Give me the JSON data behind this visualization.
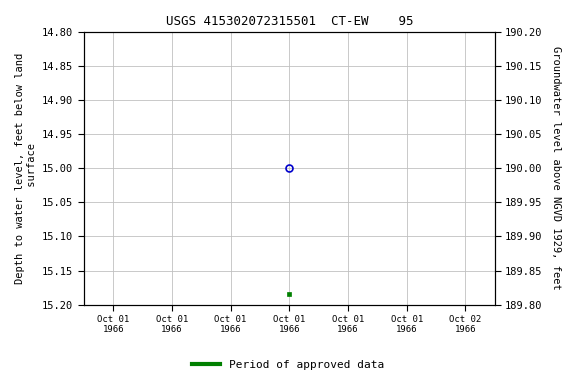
{
  "title": "USGS 415302072315501  CT-EW    95",
  "ylabel_left": "Depth to water level, feet below land\n surface",
  "ylabel_right": "Groundwater level above NGVD 1929, feet",
  "ylim_left": [
    15.2,
    14.8
  ],
  "ylim_right": [
    189.8,
    190.2
  ],
  "yticks_left": [
    14.8,
    14.85,
    14.9,
    14.95,
    15.0,
    15.05,
    15.1,
    15.15,
    15.2
  ],
  "yticks_right": [
    189.8,
    189.85,
    189.9,
    189.95,
    190.0,
    190.05,
    190.1,
    190.15,
    190.2
  ],
  "data_point_x": 3.5,
  "data_point_y": 15.0,
  "approved_point_x": 3.5,
  "approved_point_y": 15.185,
  "open_circle_color": "#0000cc",
  "approved_color": "#008000",
  "background_color": "#ffffff",
  "grid_color": "#c0c0c0",
  "font_color": "#000000",
  "xlim": [
    0,
    7
  ],
  "xtick_positions": [
    0.5,
    1.5,
    2.5,
    3.5,
    4.5,
    5.5,
    6.5
  ],
  "xtick_labels": [
    "Oct 01\n1966",
    "Oct 01\n1966",
    "Oct 01\n1966",
    "Oct 01\n1966",
    "Oct 01\n1966",
    "Oct 01\n1966",
    "Oct 02\n1966"
  ],
  "legend_label": "Period of approved data",
  "legend_color": "#008000"
}
